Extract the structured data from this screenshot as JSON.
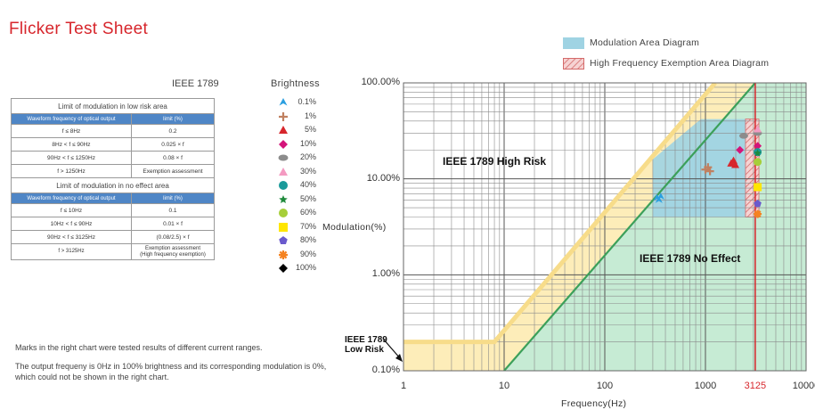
{
  "page": {
    "title": "Flicker Test Sheet"
  },
  "tables": {
    "heading": "IEEE 1789",
    "low_risk": {
      "title": "Limit of modulation in low risk area",
      "headers": [
        "Waveform frequency of optical output",
        "limit (%)"
      ],
      "rows": [
        [
          "f ≤ 8Hz",
          "0.2"
        ],
        [
          "8Hz < f ≤ 90Hz",
          "0.025 × f"
        ],
        [
          "90Hz < f ≤ 1250Hz",
          "0.08 × f"
        ],
        [
          "f > 1250Hz",
          "Exemption assessment"
        ]
      ]
    },
    "no_effect": {
      "title": "Limit of modulation in no effect area",
      "headers": [
        "Waveform frequency of optical output",
        "limit (%)"
      ],
      "rows": [
        [
          "f ≤ 10Hz",
          "0.1"
        ],
        [
          "10Hz < f ≤ 90Hz",
          "0.01 × f"
        ],
        [
          "90Hz < f ≤ 3125Hz",
          "(0.08/2.5) × f"
        ],
        [
          "f > 3125Hz",
          "Exemption assessment\n(High frequency exemption)"
        ]
      ]
    }
  },
  "brightness_legend": {
    "title": "Brightness",
    "items": [
      {
        "label": "0.1%",
        "color": "#2b9fe0",
        "marker": "tri-down"
      },
      {
        "label": "1%",
        "color": "#c08060",
        "marker": "plus"
      },
      {
        "label": "5%",
        "color": "#d7262c",
        "marker": "triangle"
      },
      {
        "label": "10%",
        "color": "#d4147a",
        "marker": "diamond"
      },
      {
        "label": "20%",
        "color": "#8c8c8c",
        "marker": "ellipse"
      },
      {
        "label": "30%",
        "color": "#f49ac1",
        "marker": "triangle"
      },
      {
        "label": "40%",
        "color": "#1a9a9a",
        "marker": "circle"
      },
      {
        "label": "50%",
        "color": "#1f8a3c",
        "marker": "star"
      },
      {
        "label": "60%",
        "color": "#a6ce39",
        "marker": "circle"
      },
      {
        "label": "70%",
        "color": "#ffe600",
        "marker": "square"
      },
      {
        "label": "80%",
        "color": "#6a5acd",
        "marker": "pentagon"
      },
      {
        "label": "90%",
        "color": "#f58220",
        "marker": "asterisk"
      },
      {
        "label": "100%",
        "color": "#000000",
        "marker": "diamond"
      }
    ]
  },
  "notes": [
    "Marks in the right chart were tested results of different current ranges.",
    "The output frequeny is 0Hz in 100% brightness and its corresponding modulation is 0%, which could not be shown in the right chart."
  ],
  "legend": {
    "modulation_area": "Modulation Area Diagram",
    "modulation_color": "#9fd3e3",
    "exemption_area": "High Frequency Exemption Area Diagram",
    "exemption_color": "#d46a6a"
  },
  "chart_data": {
    "type": "scatter",
    "xlabel": "Frequency(Hz)",
    "ylabel": "Modulation(%)",
    "x_scale": "log",
    "y_scale": "log",
    "xlim": [
      1,
      10000
    ],
    "ylim": [
      0.1,
      100
    ],
    "x_ticks": [
      "1",
      "10",
      "100",
      "1000",
      "3125",
      "10000"
    ],
    "y_ticks": [
      "0.10%",
      "1.00%",
      "10.00%",
      "100.00%"
    ],
    "grid": true,
    "regions": {
      "high_risk_label": "IEEE 1789 High Risk",
      "no_effect_label": "IEEE 1789 No Effect",
      "low_risk_label": "IEEE 1789\nLow Risk",
      "low_risk_boundary": [
        [
          1,
          0.2
        ],
        [
          8,
          0.2
        ],
        [
          1250,
          100
        ]
      ],
      "no_effect_boundary": [
        [
          10,
          0.1
        ],
        [
          3125,
          100
        ]
      ],
      "exemption_frequency": 3125,
      "colors": {
        "high_risk": "#ffffff",
        "low_risk": "#fdedb9",
        "no_effect": "#c6ebd4",
        "boundary_low": "#f7dc8a",
        "boundary_no_effect": "#3ca05a",
        "exemption_line": "#d7262c"
      }
    },
    "modulation_area": {
      "polygon": [
        [
          300,
          4
        ],
        [
          300,
          16
        ],
        [
          900,
          42
        ],
        [
          2500,
          42
        ],
        [
          2500,
          4
        ]
      ]
    },
    "exemption_area": {
      "x": [
        2500,
        3400
      ],
      "y": [
        4,
        42
      ]
    },
    "series": [
      {
        "name": "0.1%",
        "points": [
          [
            330,
            6.3
          ],
          [
            345,
            6.0
          ],
          [
            360,
            6.5
          ]
        ]
      },
      {
        "name": "1%",
        "points": [
          [
            1000,
            12.5
          ],
          [
            1060,
            13.2
          ],
          [
            1110,
            12.0
          ]
        ]
      },
      {
        "name": "5%",
        "points": [
          [
            1800,
            14.5
          ],
          [
            1900,
            15.5
          ],
          [
            1980,
            14.0
          ]
        ]
      },
      {
        "name": "10%",
        "points": [
          [
            2200,
            20
          ],
          [
            3300,
            22
          ]
        ]
      },
      {
        "name": "20%",
        "points": [
          [
            2400,
            28
          ],
          [
            3300,
            30
          ]
        ]
      },
      {
        "name": "30%",
        "points": [
          [
            3300,
            33
          ]
        ]
      },
      {
        "name": "40%",
        "points": [
          [
            3300,
            19
          ]
        ]
      },
      {
        "name": "50%",
        "points": [
          [
            3300,
            18.5
          ]
        ]
      },
      {
        "name": "60%",
        "points": [
          [
            3300,
            15
          ]
        ]
      },
      {
        "name": "70%",
        "points": [
          [
            3300,
            8.2
          ]
        ]
      },
      {
        "name": "80%",
        "points": [
          [
            3300,
            5.5
          ]
        ]
      },
      {
        "name": "90%",
        "points": [
          [
            3300,
            4.3
          ]
        ]
      }
    ]
  }
}
